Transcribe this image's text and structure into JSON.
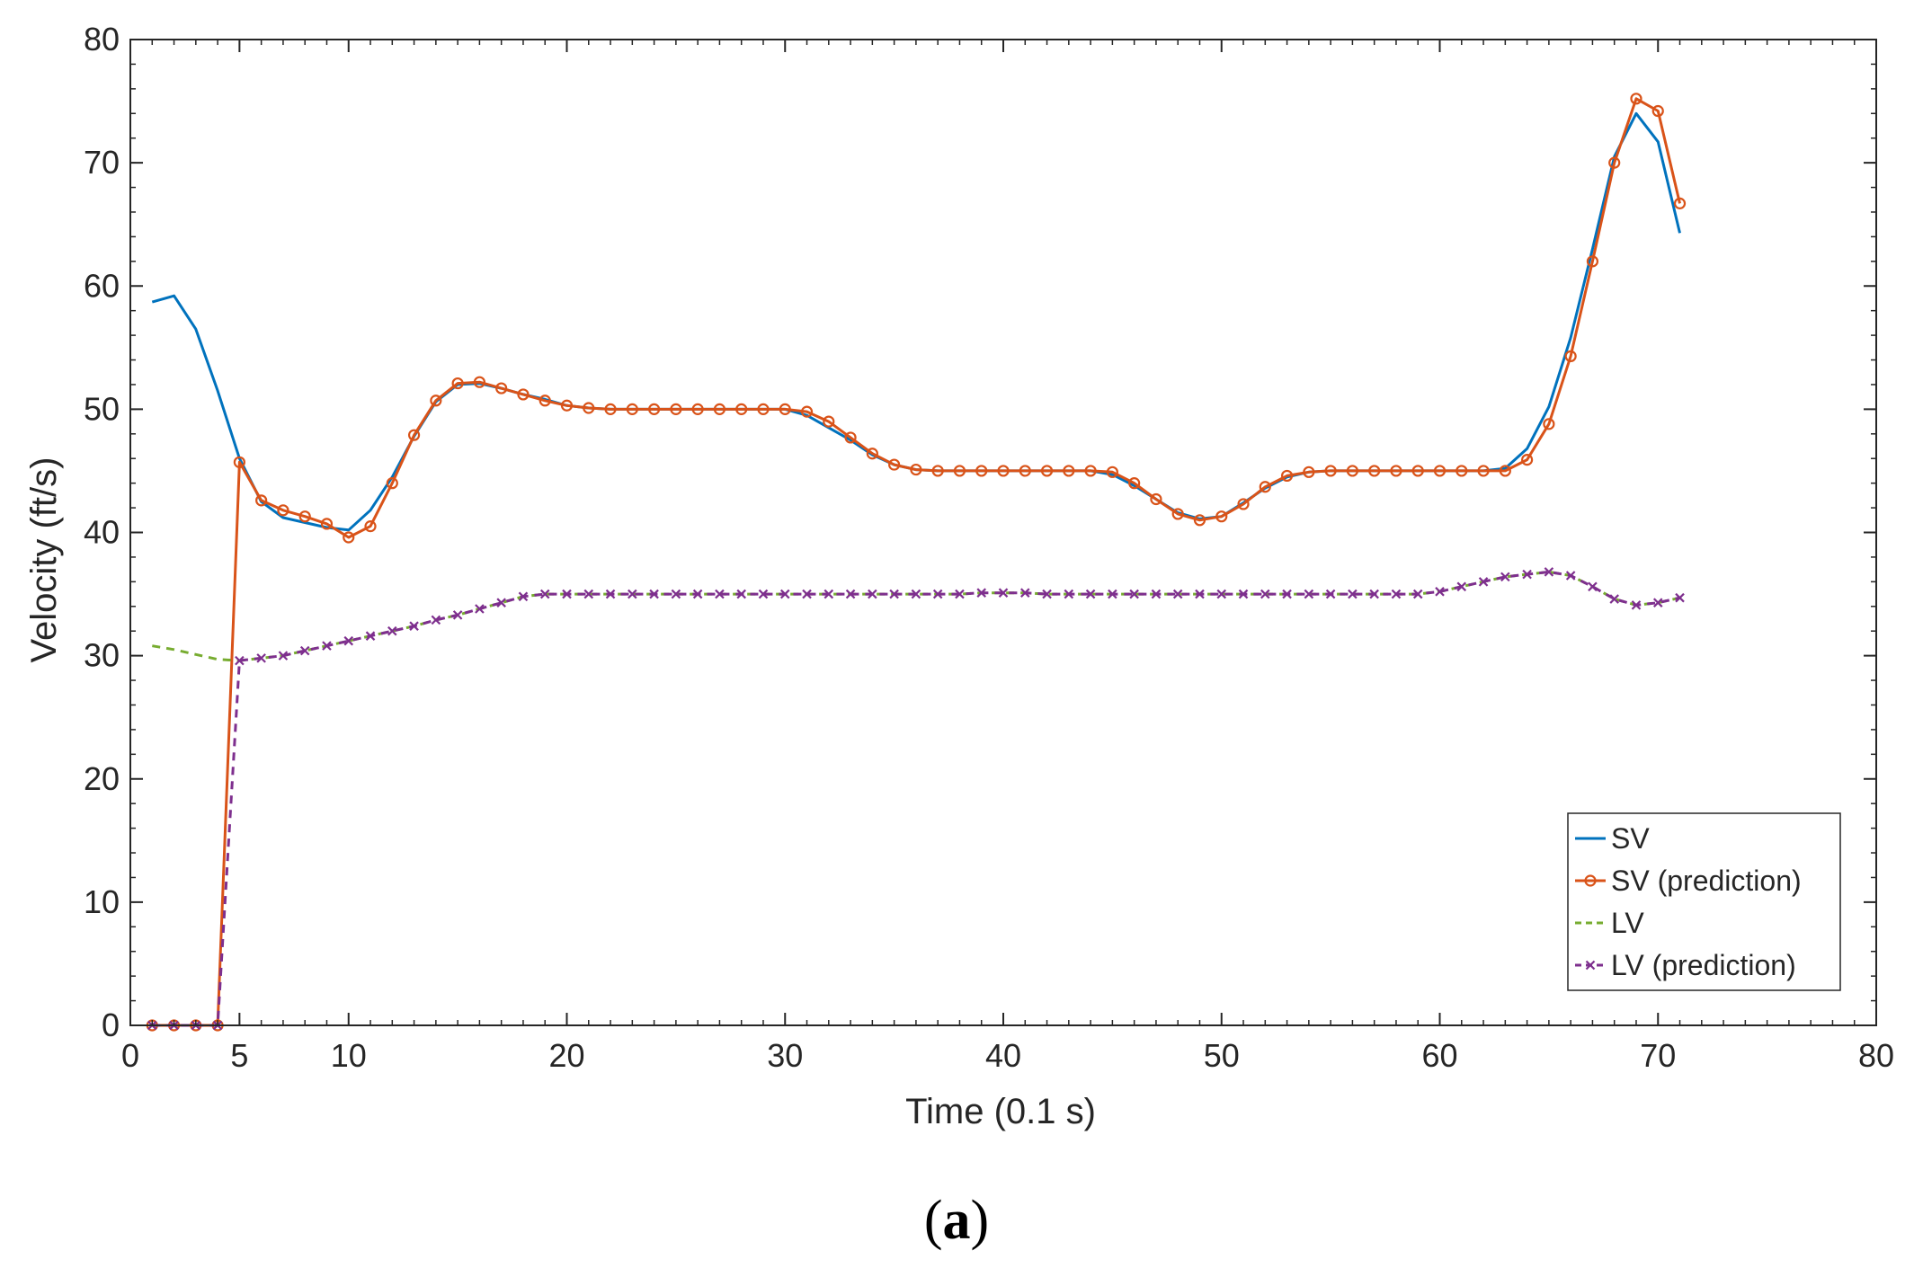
{
  "chart_data": {
    "type": "line",
    "xlabel": "Time (0.1 s)",
    "ylabel": "Velocity (ft/s)",
    "xlim": [
      0,
      80
    ],
    "ylim": [
      0,
      80
    ],
    "xticks": [
      0,
      5,
      10,
      20,
      30,
      40,
      50,
      60,
      70,
      80
    ],
    "yticks": [
      0,
      10,
      20,
      30,
      40,
      50,
      60,
      70,
      80
    ],
    "grid": false,
    "legend_position": "bottom-right",
    "caption": {
      "open": "(",
      "letter": "a",
      "close": ")"
    },
    "colors": {
      "SV": "#0072bd",
      "SV (prediction)": "#d95319",
      "LV": "#77ac30",
      "LV (prediction)": "#7e2f8e"
    },
    "series": [
      {
        "name": "SV",
        "style": "solid",
        "marker": "none",
        "x": [
          1,
          2,
          3,
          4,
          5,
          6,
          7,
          8,
          9,
          10,
          11,
          12,
          13,
          14,
          15,
          16,
          17,
          18,
          19,
          20,
          21,
          22,
          23,
          24,
          25,
          26,
          27,
          28,
          29,
          30,
          31,
          32,
          33,
          34,
          35,
          36,
          37,
          38,
          39,
          40,
          41,
          42,
          43,
          44,
          45,
          46,
          47,
          48,
          49,
          50,
          51,
          52,
          53,
          54,
          55,
          56,
          57,
          58,
          59,
          60,
          61,
          62,
          63,
          64,
          65,
          66,
          67,
          68,
          69,
          70,
          71
        ],
        "y": [
          58.7,
          59.2,
          56.5,
          51.5,
          46.0,
          42.5,
          41.2,
          40.8,
          40.4,
          40.2,
          41.8,
          44.5,
          47.8,
          50.6,
          52.0,
          52.1,
          51.7,
          51.2,
          50.8,
          50.3,
          50.1,
          50.0,
          50.0,
          50.0,
          50.0,
          50.0,
          50.0,
          50.0,
          50.0,
          50.0,
          49.5,
          48.5,
          47.5,
          46.3,
          45.5,
          45.1,
          45.0,
          45.0,
          45.0,
          45.0,
          45.0,
          45.0,
          45.0,
          45.0,
          44.7,
          43.8,
          42.7,
          41.6,
          41.1,
          41.3,
          42.4,
          43.6,
          44.5,
          44.9,
          45.0,
          45.0,
          45.0,
          45.0,
          45.0,
          45.0,
          45.0,
          45.0,
          45.2,
          46.8,
          50.2,
          55.8,
          63.0,
          70.5,
          74.0,
          71.7,
          64.3
        ]
      },
      {
        "name": "SV (prediction)",
        "style": "solid",
        "marker": "circle",
        "x": [
          1,
          2,
          3,
          4,
          5,
          6,
          7,
          8,
          9,
          10,
          11,
          12,
          13,
          14,
          15,
          16,
          17,
          18,
          19,
          20,
          21,
          22,
          23,
          24,
          25,
          26,
          27,
          28,
          29,
          30,
          31,
          32,
          33,
          34,
          35,
          36,
          37,
          38,
          39,
          40,
          41,
          42,
          43,
          44,
          45,
          46,
          47,
          48,
          49,
          50,
          51,
          52,
          53,
          54,
          55,
          56,
          57,
          58,
          59,
          60,
          61,
          62,
          63,
          64,
          65,
          66,
          67,
          68,
          69,
          70,
          71
        ],
        "y": [
          0,
          0,
          0,
          0,
          45.7,
          42.6,
          41.8,
          41.3,
          40.7,
          39.6,
          40.5,
          44.0,
          47.9,
          50.7,
          52.1,
          52.2,
          51.7,
          51.2,
          50.7,
          50.3,
          50.1,
          50.0,
          50.0,
          50.0,
          50.0,
          50.0,
          50.0,
          50.0,
          50.0,
          50.0,
          49.8,
          49.0,
          47.7,
          46.4,
          45.5,
          45.1,
          45.0,
          45.0,
          45.0,
          45.0,
          45.0,
          45.0,
          45.0,
          45.0,
          44.9,
          44.0,
          42.7,
          41.5,
          41.0,
          41.3,
          42.3,
          43.7,
          44.6,
          44.9,
          45.0,
          45.0,
          45.0,
          45.0,
          45.0,
          45.0,
          45.0,
          45.0,
          45.0,
          45.9,
          48.8,
          54.3,
          62.0,
          70.0,
          75.2,
          74.2,
          66.7
        ]
      },
      {
        "name": "LV",
        "style": "dashed",
        "marker": "none",
        "x": [
          1,
          2,
          3,
          4,
          5,
          6,
          7,
          8,
          9,
          10,
          11,
          12,
          13,
          14,
          15,
          16,
          17,
          18,
          19,
          20,
          21,
          22,
          23,
          24,
          25,
          26,
          27,
          28,
          29,
          30,
          31,
          32,
          33,
          34,
          35,
          36,
          37,
          38,
          39,
          40,
          41,
          42,
          43,
          44,
          45,
          46,
          47,
          48,
          49,
          50,
          51,
          52,
          53,
          54,
          55,
          56,
          57,
          58,
          59,
          60,
          61,
          62,
          63,
          64,
          65,
          66,
          67,
          68,
          69,
          70,
          71
        ],
        "y": [
          30.8,
          30.5,
          30.1,
          29.7,
          29.6,
          29.8,
          30.0,
          30.4,
          30.8,
          31.2,
          31.6,
          32.0,
          32.4,
          32.9,
          33.3,
          33.8,
          34.3,
          34.8,
          35.0,
          35.0,
          35.0,
          35.0,
          35.0,
          35.0,
          35.0,
          35.0,
          35.0,
          35.0,
          35.0,
          35.0,
          35.0,
          35.0,
          35.0,
          35.0,
          35.0,
          35.0,
          35.0,
          35.0,
          35.1,
          35.1,
          35.1,
          35.0,
          35.0,
          35.0,
          35.0,
          35.0,
          35.0,
          35.0,
          35.0,
          35.0,
          35.0,
          35.0,
          35.0,
          35.0,
          35.0,
          35.0,
          35.0,
          35.0,
          35.0,
          35.2,
          35.6,
          36.0,
          36.4,
          36.6,
          36.8,
          36.5,
          35.6,
          34.6,
          34.1,
          34.3,
          34.7
        ]
      },
      {
        "name": "LV (prediction)",
        "style": "dashed",
        "marker": "x",
        "x": [
          1,
          2,
          3,
          4,
          5,
          6,
          7,
          8,
          9,
          10,
          11,
          12,
          13,
          14,
          15,
          16,
          17,
          18,
          19,
          20,
          21,
          22,
          23,
          24,
          25,
          26,
          27,
          28,
          29,
          30,
          31,
          32,
          33,
          34,
          35,
          36,
          37,
          38,
          39,
          40,
          41,
          42,
          43,
          44,
          45,
          46,
          47,
          48,
          49,
          50,
          51,
          52,
          53,
          54,
          55,
          56,
          57,
          58,
          59,
          60,
          61,
          62,
          63,
          64,
          65,
          66,
          67,
          68,
          69,
          70,
          71
        ],
        "y": [
          0,
          0,
          0,
          0,
          29.6,
          29.8,
          30.0,
          30.4,
          30.8,
          31.2,
          31.6,
          32.0,
          32.4,
          32.9,
          33.3,
          33.8,
          34.3,
          34.8,
          35.0,
          35.0,
          35.0,
          35.0,
          35.0,
          35.0,
          35.0,
          35.0,
          35.0,
          35.0,
          35.0,
          35.0,
          35.0,
          35.0,
          35.0,
          35.0,
          35.0,
          35.0,
          35.0,
          35.0,
          35.1,
          35.1,
          35.1,
          35.0,
          35.0,
          35.0,
          35.0,
          35.0,
          35.0,
          35.0,
          35.0,
          35.0,
          35.0,
          35.0,
          35.0,
          35.0,
          35.0,
          35.0,
          35.0,
          35.0,
          35.0,
          35.2,
          35.6,
          36.0,
          36.4,
          36.6,
          36.8,
          36.5,
          35.6,
          34.6,
          34.1,
          34.3,
          34.7
        ]
      }
    ]
  }
}
